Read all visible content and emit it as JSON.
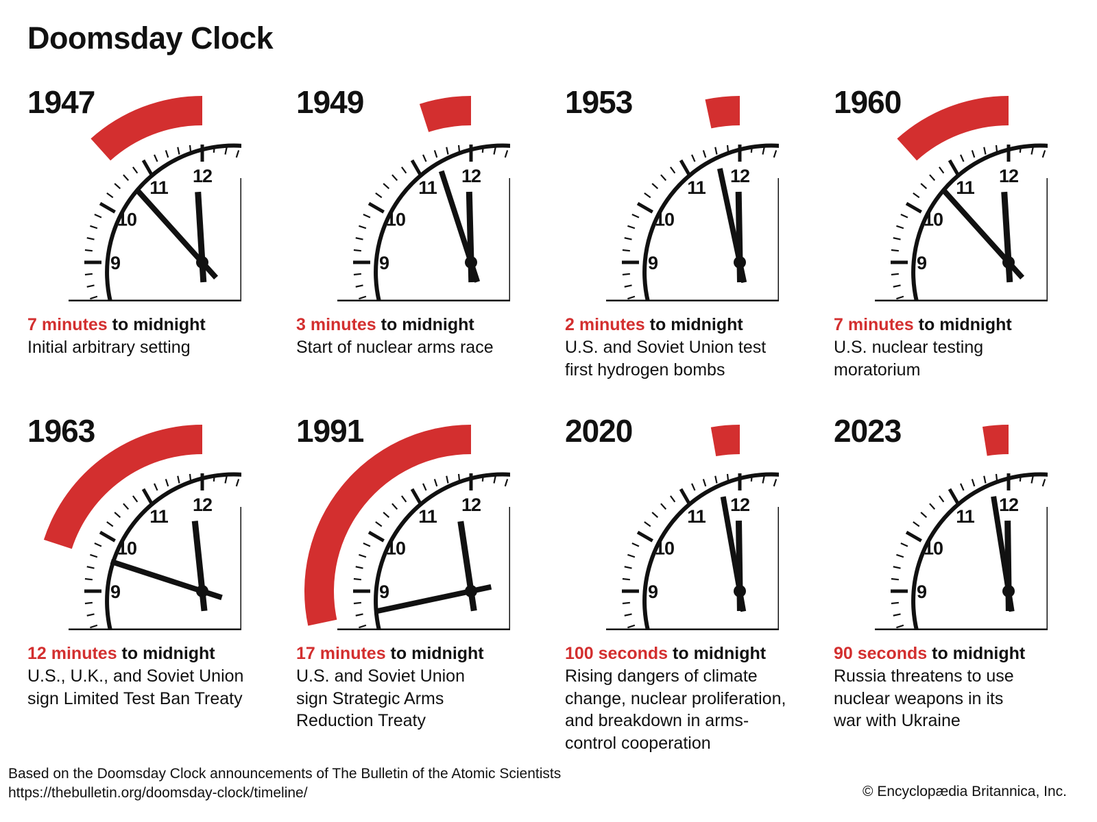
{
  "title": "Doomsday Clock",
  "colors": {
    "accent_red": "#d32f2f",
    "ink": "#111111"
  },
  "dial_labels": [
    "9",
    "10",
    "11",
    "12"
  ],
  "panels": [
    {
      "year": "1947",
      "amount": "7 minutes",
      "suffix": " to midnight",
      "seconds_to_midnight": 420,
      "description": [
        "Initial arbitrary setting"
      ]
    },
    {
      "year": "1949",
      "amount": "3 minutes",
      "suffix": " to midnight",
      "seconds_to_midnight": 180,
      "description": [
        "Start of nuclear arms race"
      ]
    },
    {
      "year": "1953",
      "amount": "2 minutes",
      "suffix": " to midnight",
      "seconds_to_midnight": 120,
      "description": [
        "U.S. and Soviet Union test",
        "first hydrogen bombs"
      ]
    },
    {
      "year": "1960",
      "amount": "7 minutes",
      "suffix": " to midnight",
      "seconds_to_midnight": 420,
      "description": [
        "U.S. nuclear testing",
        "moratorium"
      ]
    },
    {
      "year": "1963",
      "amount": "12 minutes",
      "suffix": " to midnight",
      "seconds_to_midnight": 720,
      "description": [
        "U.S., U.K., and Soviet Union",
        "sign Limited Test Ban Treaty"
      ]
    },
    {
      "year": "1991",
      "amount": "17 minutes",
      "suffix": " to midnight",
      "seconds_to_midnight": 1020,
      "description": [
        "U.S. and Soviet Union",
        "sign Strategic Arms",
        "Reduction Treaty"
      ]
    },
    {
      "year": "2020",
      "amount": "100 seconds",
      "suffix": " to midnight",
      "seconds_to_midnight": 100,
      "description": [
        "Rising dangers of climate",
        "change, nuclear proliferation,",
        "and breakdown in arms-",
        "control cooperation"
      ]
    },
    {
      "year": "2023",
      "amount": "90 seconds",
      "suffix": " to midnight",
      "seconds_to_midnight": 90,
      "description": [
        "Russia threatens to use",
        "nuclear weapons in its",
        "war with Ukraine"
      ]
    }
  ],
  "footer": {
    "source": "Based on the Doomsday Clock announcements of The Bulletin of the Atomic Scientists",
    "url": "https://thebulletin.org/doomsday-clock/timeline/",
    "copyright": "© Encyclopædia Britannica, Inc."
  }
}
